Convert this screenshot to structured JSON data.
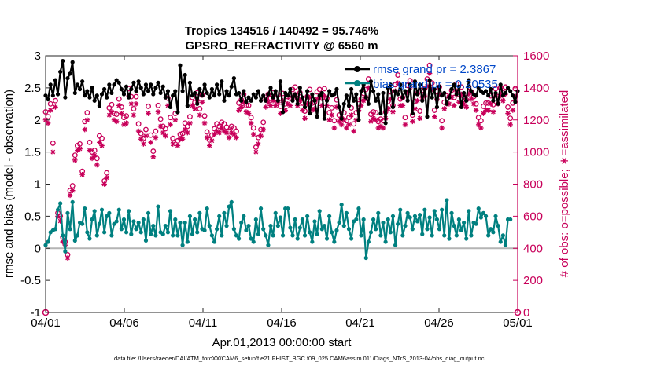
{
  "chart_data": {
    "type": "line",
    "title": "Tropics 134516 / 140492 = 95.746%",
    "subtitle": "GPSRO_REFRACTIVITY @ 6560 m",
    "xlabel": "Apr.01,2013 00:00:00 start",
    "ylabel_left": "rmse and bias (model - observation)",
    "ylabel_right": "# of obs: o=possible; ∗=assimilated",
    "x_tick_labels": [
      "04/01",
      "04/06",
      "04/11",
      "04/16",
      "04/21",
      "04/26",
      "05/01"
    ],
    "y_left_ticks": [
      "-1",
      "-0.5",
      "0",
      "0.5",
      "1",
      "1.5",
      "2",
      "2.5",
      "3"
    ],
    "y_right_ticks": [
      "0",
      "200",
      "400",
      "600",
      "800",
      "1000",
      "1200",
      "1400",
      "1600"
    ],
    "x_range_days": [
      0,
      30
    ],
    "y_left_range": [
      -1,
      3
    ],
    "y_right_range": [
      0,
      1600
    ],
    "legend": {
      "rmse": "rmse grand pr = 2.3867",
      "bias": "bias grand pr = 0.20535"
    },
    "footer": "data file: /Users/raeder/DAI/ATM_forcXX/CAM6_setup/f.e21.FHIST_BGC.f09_025.CAM6assim.011/Diags_NTrS_2013-04/obs_diag_output.nc",
    "colors": {
      "rmse": "#000000",
      "bias": "#008080",
      "counts": "#c8005a",
      "zero_line": "#b4b4b4"
    },
    "series": [
      {
        "name": "rmse",
        "values": [
          2.38,
          2.32,
          2.55,
          2.38,
          2.62,
          2.4,
          2.75,
          2.92,
          2.35,
          2.65,
          2.72,
          2.9,
          2.42,
          2.55,
          2.48,
          2.6,
          2.38,
          2.45,
          2.35,
          2.5,
          2.3,
          2.38,
          2.22,
          2.4,
          2.48,
          2.35,
          2.55,
          2.42,
          2.55,
          2.62,
          2.58,
          2.48,
          2.4,
          2.52,
          2.35,
          2.48,
          2.58,
          2.45,
          2.6,
          2.5,
          2.4,
          2.55,
          2.45,
          2.55,
          2.4,
          2.5,
          2.58,
          2.42,
          2.52,
          2.35,
          2.45,
          2.2,
          2.38,
          2.45,
          2.12,
          2.85,
          2.45,
          2.7,
          2.22,
          2.58,
          2.38,
          2.42,
          2.25,
          2.48,
          2.38,
          2.55,
          2.42,
          2.35,
          2.48,
          2.38,
          2.55,
          2.4,
          2.6,
          2.3,
          2.45,
          2.38,
          2.52,
          2.65,
          2.4,
          2.42,
          2.3,
          2.45,
          2.28,
          2.35,
          2.3,
          2.4,
          2.35,
          2.45,
          2.3,
          2.38,
          2.3,
          2.4,
          2.5,
          2.35,
          2.45,
          2.3,
          2.6,
          2.12,
          2.42,
          2.38,
          2.48,
          2.3,
          2.4,
          2.25,
          2.5,
          2.35,
          2.2,
          2.45,
          2.1,
          2.4,
          2.3,
          2.05,
          2.38,
          2.42,
          2.02,
          2.3,
          2.45,
          2.38,
          2.4,
          2.48,
          2.2,
          2.02,
          2.25,
          2.38,
          2.22,
          2.48,
          2.3,
          2.4,
          2.0,
          2.45,
          2.55,
          2.35,
          2.25,
          2.6,
          2.45,
          2.3,
          2.4,
          2.1,
          2.42,
          1.95,
          2.5,
          2.55,
          2.2,
          2.45,
          2.4,
          2.55,
          2.35,
          2.45,
          2.3,
          2.55,
          2.1,
          2.6,
          2.4,
          2.55,
          2.3,
          2.48,
          2.05,
          2.62,
          2.35,
          2.48,
          2.2,
          2.52,
          2.38,
          2.42,
          2.25,
          2.35,
          2.48,
          2.55,
          2.4,
          2.52,
          2.2,
          2.42,
          2.3,
          2.62,
          2.45,
          2.4,
          2.38,
          2.5,
          2.45,
          2.42,
          2.45,
          2.38,
          2.48,
          2.3,
          2.42,
          2.25,
          2.55,
          2.38,
          2.42,
          2.5,
          2.45,
          2.38,
          2.28,
          2.45
        ]
      },
      {
        "name": "bias",
        "values": [
          0.05,
          0.1,
          0.25,
          0.28,
          0.3,
          0.6,
          0.7,
          0.2,
          -0.05,
          0.55,
          0.3,
          0.72,
          0.12,
          0.2,
          0.4,
          0.38,
          0.62,
          0.25,
          0.15,
          0.45,
          0.58,
          0.2,
          0.38,
          0.6,
          0.25,
          0.5,
          0.55,
          0.2,
          0.38,
          0.42,
          0.6,
          0.3,
          0.45,
          0.25,
          0.58,
          0.22,
          0.42,
          0.3,
          0.4,
          0.25,
          0.45,
          0.12,
          0.55,
          0.22,
          0.35,
          0.2,
          0.65,
          0.25,
          0.22,
          0.35,
          0.25,
          0.58,
          0.2,
          0.45,
          0.2,
          0.4,
          0.05,
          0.4,
          0.1,
          0.5,
          0.22,
          0.45,
          0.25,
          0.55,
          0.3,
          0.28,
          0.62,
          0.35,
          0.2,
          0.1,
          0.3,
          0.5,
          0.2,
          0.55,
          0.35,
          0.65,
          0.72,
          0.3,
          0.2,
          0.15,
          0.4,
          0.5,
          0.28,
          0.35,
          0.15,
          0.1,
          0.45,
          0.22,
          0.62,
          0.3,
          0.2,
          0.05,
          0.35,
          0.2,
          0.55,
          0.35,
          0.48,
          0.2,
          0.62,
          0.62,
          0.32,
          0.2,
          0.45,
          0.15,
          0.32,
          0.45,
          0.2,
          0.5,
          0.25,
          0.1,
          0.42,
          0.22,
          0.58,
          0.3,
          0.35,
          0.15,
          0.5,
          0.25,
          0.1,
          0.28,
          0.4,
          0.68,
          0.35,
          0.55,
          0.3,
          0.15,
          0.42,
          0.45,
          0.62,
          0.2,
          0.45,
          -0.15,
          0.1,
          0.25,
          0.45,
          0.3,
          0.55,
          0.2,
          0.4,
          0.1,
          0.45,
          0.25,
          0.5,
          0.05,
          0.38,
          0.6,
          0.2,
          0.35,
          0.55,
          0.48,
          0.3,
          0.5,
          0.42,
          0.52,
          0.22,
          0.6,
          0.3,
          0.48,
          0.2,
          0.58,
          0.45,
          0.3,
          0.6,
          0.2,
          0.75,
          0.15,
          0.55,
          0.35,
          0.2,
          0.45,
          0.28,
          0.4,
          0.15,
          0.58,
          0.2,
          0.4,
          0.38,
          0.62,
          0.48,
          0.55,
          0.5,
          0.2,
          0.3,
          0.25,
          0.5,
          0.35,
          0.1,
          0.2,
          0.05,
          0.45,
          0.45
        ]
      },
      {
        "name": "obs_possible",
        "axis": "right",
        "values": [
          1250,
          1220,
          1300,
          1055,
          1320,
          620,
          600,
          470,
          440,
          360,
          760,
          790,
          980,
          1040,
          1050,
          880,
          1190,
          1245,
          1060,
          1000,
          1010,
          960,
          1100,
          1085,
          820,
          870,
          1275,
          1295,
          1240,
          1235,
          1330,
          1280,
          1215,
          1225,
          1395,
          1345,
          1270,
          1345,
          1175,
          1115,
          1085,
          1140,
          1285,
          1105,
          1005,
          1130,
          1290,
          1205,
          1160,
          1145,
          1335,
          1215,
          1085,
          1240,
          1070,
          1110,
          1115,
          1180,
          1160,
          1220,
          1340,
          1310,
          1370,
          1270,
          1355,
          1225,
          1125,
          1075,
          1105,
          1145,
          1175,
          1160,
          1185,
          1175,
          1155,
          1130,
          1160,
          1150,
          1130,
          1305,
          1325,
          1360,
          1290,
          1290,
          1215,
          1150,
          1030,
          1090,
          1140,
          1185,
          1325,
          1360,
          1335,
          1370,
          1330,
          1355,
          1285,
          1365,
          1300,
          1345,
          1335,
          1390,
          1405,
          1335,
          1370,
          1305,
          1255,
          1345,
          1390,
          1305,
          1310,
          1375,
          1390,
          1335,
          1395,
          1335,
          1245,
          1275,
          1195,
          1325,
          1230,
          1210,
          1245,
          1195,
          1215,
          1275,
          1175,
          1245,
          1300,
          1330,
          1365,
          1390,
          1455,
          1235,
          1250,
          1245,
          1190,
          1205,
          1195,
          1250,
          1315,
          1375,
          1290,
          1420,
          1480,
          1330,
          1340,
          1215,
          1415,
          1445,
          1230,
          1315,
          1365,
          1255,
          1385,
          1395,
          1455,
          1540,
          1430,
          1260,
          1375,
          1405,
          1195,
          1310,
          1350,
          1345,
          1385,
          1340,
          1425,
          1360,
          1405,
          1345,
          1325,
          1405,
          1375,
          1345,
          1300,
          1215,
          1195,
          1285,
          1305,
          1305,
          1350,
          1295,
          1395,
          1345,
          1400,
          1370,
          1405,
          1280,
          1210,
          1305,
          1395
        ]
      },
      {
        "name": "obs_assimilated",
        "axis": "right",
        "values": [
          1200,
          1180,
          1260,
          1000,
          1280,
          600,
          570,
          440,
          420,
          340,
          730,
          760,
          950,
          1010,
          1020,
          860,
          1140,
          1200,
          1010,
          960,
          980,
          920,
          1060,
          1040,
          800,
          840,
          1230,
          1250,
          1200,
          1190,
          1290,
          1240,
          1170,
          1180,
          1350,
          1300,
          1230,
          1300,
          1130,
          1080,
          1050,
          1100,
          1240,
          1060,
          970,
          1090,
          1250,
          1160,
          1120,
          1100,
          1290,
          1170,
          1050,
          1200,
          1040,
          1080,
          1080,
          1140,
          1120,
          1180,
          1290,
          1270,
          1320,
          1230,
          1310,
          1180,
          1090,
          1040,
          1070,
          1110,
          1130,
          1120,
          1150,
          1130,
          1120,
          1090,
          1120,
          1110,
          1090,
          1260,
          1280,
          1310,
          1250,
          1240,
          1180,
          1110,
          1000,
          1050,
          1100,
          1140,
          1280,
          1310,
          1290,
          1320,
          1290,
          1310,
          1240,
          1320,
          1260,
          1300,
          1290,
          1340,
          1360,
          1290,
          1320,
          1260,
          1210,
          1300,
          1340,
          1260,
          1270,
          1330,
          1340,
          1290,
          1350,
          1290,
          1200,
          1230,
          1150,
          1280,
          1190,
          1170,
          1200,
          1150,
          1170,
          1230,
          1130,
          1200,
          1260,
          1290,
          1320,
          1340,
          1400,
          1190,
          1210,
          1200,
          1150,
          1160,
          1150,
          1210,
          1270,
          1330,
          1250,
          1380,
          1430,
          1290,
          1290,
          1170,
          1370,
          1400,
          1190,
          1270,
          1320,
          1210,
          1340,
          1350,
          1410,
          1490,
          1390,
          1220,
          1330,
          1360,
          1150,
          1270,
          1300,
          1300,
          1340,
          1290,
          1380,
          1310,
          1360,
          1300,
          1280,
          1360,
          1330,
          1300,
          1260,
          1170,
          1150,
          1240,
          1260,
          1260,
          1300,
          1250,
          1350,
          1300,
          1350,
          1320,
          1360,
          1240,
          1170,
          1260,
          1350
        ]
      }
    ]
  }
}
